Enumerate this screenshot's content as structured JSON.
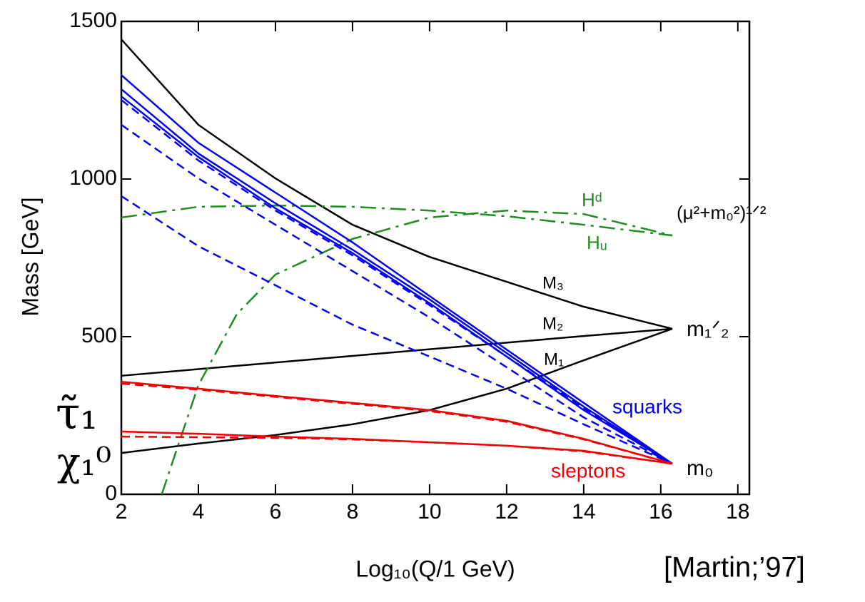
{
  "chart_data": {
    "type": "line",
    "x_label": "Log₁₀(Q/1 GeV)",
    "y_label": "Mass  [GeV]",
    "xlim": [
      2,
      18.3
    ],
    "ylim": [
      0,
      1500
    ],
    "xticks": [
      2,
      4,
      6,
      8,
      10,
      12,
      14,
      16,
      18
    ],
    "yticks": [
      0,
      500,
      1000,
      1500
    ],
    "grid": false,
    "x": [
      2,
      4,
      6,
      8,
      10,
      12,
      14,
      16.3
    ],
    "series": [
      {
        "color": "#000000",
        "dash": "solid",
        "values": [
          1443,
          1172,
          1002,
          855,
          753,
          674,
          595,
          525
        ]
      },
      {
        "color": "#000000",
        "dash": "solid",
        "values": [
          376,
          397,
          418,
          439,
          460,
          481,
          502,
          525
        ]
      },
      {
        "color": "#000000",
        "dash": "solid",
        "values": [
          131,
          161,
          188,
          222,
          267,
          335,
          425,
          525
        ]
      },
      {
        "color": "#228b22",
        "dash": "dashdot",
        "values": [
          878,
          912,
          916,
          912,
          900,
          882,
          855,
          821
        ]
      },
      {
        "color": "#228b22",
        "dash": "dashdot",
        "x": [
          3.05,
          3.5,
          4,
          5,
          6,
          8,
          10,
          12,
          14,
          16.3
        ],
        "values": [
          0,
          165,
          346,
          572,
          697,
          810,
          878,
          900,
          889,
          821
        ]
      },
      {
        "color": "#0000ee",
        "dash": "solid",
        "values": [
          1330,
          1115,
          957,
          799,
          629,
          459,
          290,
          97
        ]
      },
      {
        "color": "#0000ee",
        "dash": "solid",
        "values": [
          1285,
          1081,
          923,
          776,
          618,
          448,
          278,
          97
        ]
      },
      {
        "color": "#0000ee",
        "dash": "solid",
        "values": [
          1262,
          1070,
          907,
          765,
          606,
          437,
          267,
          97
        ]
      },
      {
        "color": "#0000ee",
        "dash": "dashed",
        "values": [
          1251,
          1059,
          900,
          758,
          600,
          437,
          274,
          97
        ]
      },
      {
        "color": "#0000ee",
        "dash": "dashed",
        "values": [
          1172,
          1002,
          855,
          708,
          561,
          403,
          244,
          97
        ]
      },
      {
        "color": "#0000ee",
        "dash": "dashed",
        "values": [
          946,
          787,
          663,
          538,
          437,
          335,
          222,
          97
        ]
      },
      {
        "color": "#ee0000",
        "dash": "solid",
        "values": [
          357,
          335,
          312,
          290,
          267,
          233,
          176,
          97
        ]
      },
      {
        "color": "#ee0000",
        "dash": "dashed",
        "values": [
          351,
          332,
          309,
          287,
          264,
          230,
          174,
          97
        ]
      },
      {
        "color": "#ee0000",
        "dash": "solid",
        "values": [
          199,
          192,
          183,
          176,
          165,
          154,
          138,
          97
        ]
      },
      {
        "color": "#ee0000",
        "dash": "dashed",
        "values": [
          183,
          181,
          179,
          174,
          165,
          154,
          136,
          97
        ]
      }
    ],
    "annotations": [
      {
        "text": "Hᵈ",
        "color": "#228b22"
      },
      {
        "text": "Hᵤ",
        "color": "#228b22"
      },
      {
        "text": "(μ²+m₀²)¹ᐟ²",
        "color": "#000000"
      },
      {
        "text": "M₃",
        "color": "#000000"
      },
      {
        "text": "M₂",
        "color": "#000000"
      },
      {
        "text": "M₁",
        "color": "#000000"
      },
      {
        "text": "m₁ᐟ₂",
        "color": "#000000"
      },
      {
        "text": "squarks",
        "color": "#0000ee"
      },
      {
        "text": "sleptons",
        "color": "#ee0000"
      },
      {
        "text": "m₀",
        "color": "#000000"
      },
      {
        "text": "τ̃₁",
        "color": "#000000"
      },
      {
        "text": "χ₁⁰",
        "color": "#000000"
      },
      {
        "text": "[Martin;’97]",
        "color": "#000000"
      }
    ]
  }
}
